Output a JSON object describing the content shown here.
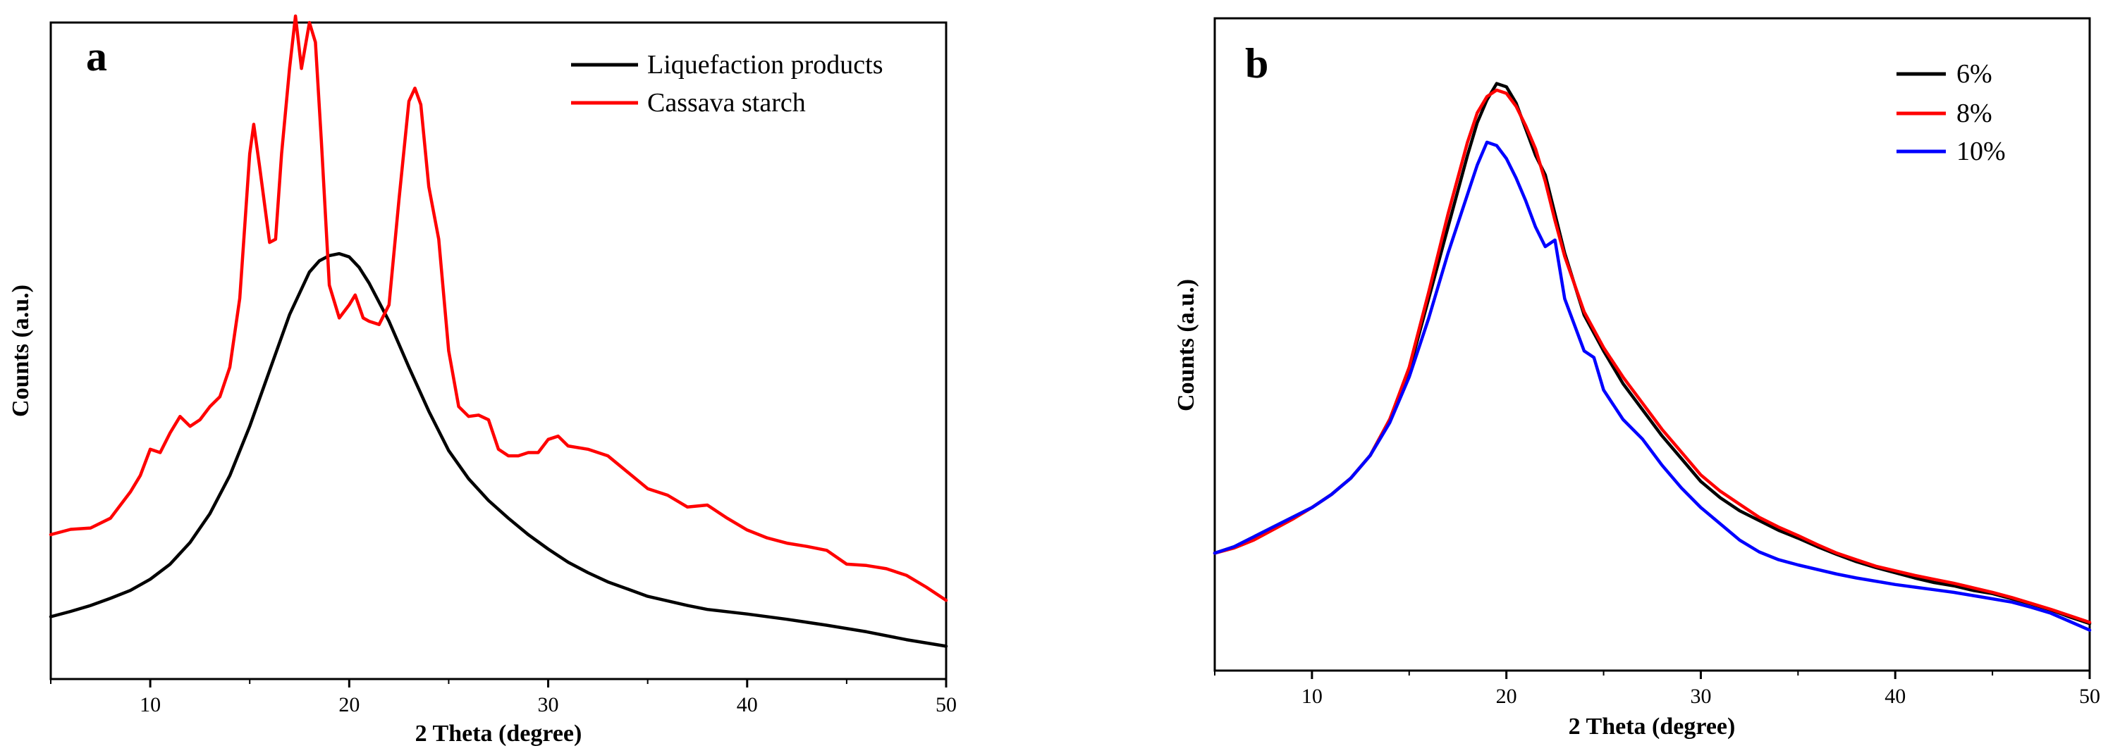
{
  "chart_data": [
    {
      "type": "line",
      "panel_label": "a",
      "xlabel": "2 Theta (degree)",
      "ylabel": "Counts (a.u.)",
      "xlim": [
        5,
        50
      ],
      "ylim": [
        0,
        100
      ],
      "xticks": [
        10,
        20,
        30,
        40,
        50
      ],
      "x_minor_ticks": [
        5,
        15,
        25,
        35,
        45
      ],
      "yticks_shown": false,
      "legend_position": "top-right",
      "series": [
        {
          "name": "Liquefaction products",
          "color": "#000000",
          "x": [
            5,
            6,
            7,
            8,
            9,
            10,
            11,
            12,
            13,
            14,
            15,
            16,
            17,
            18,
            18.5,
            19,
            19.5,
            20,
            20.5,
            21,
            22,
            23,
            24,
            25,
            26,
            27,
            28,
            29,
            30,
            31,
            32,
            33,
            34,
            35,
            36,
            37,
            38,
            40,
            42,
            44,
            46,
            48,
            50
          ],
          "values": [
            9.5,
            10.3,
            11.2,
            12.3,
            13.5,
            15.2,
            17.5,
            20.8,
            25.2,
            31,
            38.5,
            47,
            55.5,
            62,
            63.7,
            64.5,
            64.8,
            64.3,
            62.7,
            60.3,
            54.5,
            47.5,
            40.8,
            34.8,
            30.5,
            27.2,
            24.5,
            22,
            19.8,
            17.8,
            16.2,
            14.8,
            13.7,
            12.6,
            11.9,
            11.2,
            10.6,
            9.9,
            9.1,
            8.2,
            7.2,
            6.0,
            5.0
          ]
        },
        {
          "name": "Cassava starch",
          "color": "#ff0000",
          "x": [
            5,
            6,
            7,
            8,
            9,
            9.5,
            10,
            10.5,
            11,
            11.5,
            12,
            12.5,
            13,
            13.5,
            14,
            14.5,
            15,
            15.2,
            15.5,
            16,
            16.3,
            16.6,
            17,
            17.3,
            17.6,
            18,
            18.3,
            18.6,
            19,
            19.5,
            20,
            20.3,
            20.7,
            21,
            21.5,
            22,
            22.5,
            23,
            23.3,
            23.6,
            24,
            24.5,
            25,
            25.5,
            26,
            26.5,
            27,
            27.5,
            28,
            28.5,
            29,
            29.5,
            30,
            30.5,
            31,
            32,
            33,
            34,
            35,
            36,
            37,
            38,
            39,
            40,
            41,
            42,
            43,
            44,
            45,
            46,
            47,
            48,
            49,
            50
          ],
          "values": [
            22,
            22.8,
            23,
            24.5,
            28.5,
            31,
            35,
            34.5,
            37.5,
            40,
            38.5,
            39.5,
            41.5,
            43,
            47.5,
            58,
            80,
            84.5,
            78,
            66.5,
            67,
            80,
            93,
            101,
            93,
            100,
            97,
            82,
            60,
            55,
            57,
            58.5,
            55,
            54.5,
            54,
            57,
            73,
            88,
            90,
            87.5,
            75,
            67,
            50,
            41.5,
            40,
            40.2,
            39.5,
            35,
            34,
            34,
            34.5,
            34.5,
            36.5,
            37,
            35.5,
            35,
            34,
            31.5,
            29,
            28,
            26.2,
            26.5,
            24.5,
            22.7,
            21.5,
            20.7,
            20.2,
            19.6,
            17.5,
            17.3,
            16.8,
            15.8,
            14,
            12
          ]
        }
      ]
    },
    {
      "type": "line",
      "panel_label": "b",
      "xlabel": "2 Theta (degree)",
      "ylabel": "Counts (a.u.)",
      "xlim": [
        5,
        50
      ],
      "ylim": [
        0,
        100
      ],
      "xticks": [
        10,
        20,
        30,
        40,
        50
      ],
      "x_minor_ticks": [
        5,
        15,
        25,
        35,
        45
      ],
      "yticks_shown": false,
      "legend_position": "top-right",
      "series": [
        {
          "name": "6%",
          "color": "#000000",
          "x": [
            5,
            6,
            7,
            8,
            9,
            10,
            11,
            12,
            13,
            14,
            15,
            16,
            17,
            18,
            18.5,
            19,
            19.5,
            20,
            20.5,
            21,
            21.5,
            22,
            22.5,
            23,
            24,
            25,
            26,
            27,
            28,
            29,
            30,
            31,
            32,
            33,
            34,
            35,
            36,
            37,
            38,
            39,
            40,
            41,
            42,
            43,
            44,
            45,
            46,
            47,
            48,
            49,
            50
          ],
          "values": [
            18,
            19,
            20.5,
            22,
            23.5,
            25,
            27,
            29.5,
            33,
            38.5,
            46,
            57,
            68,
            79,
            84,
            87.5,
            90,
            89.5,
            87,
            83,
            79,
            76,
            70,
            64,
            54.5,
            49,
            44,
            40,
            36,
            32.5,
            29,
            26.5,
            24.5,
            23,
            21.5,
            20.3,
            19,
            17.8,
            16.7,
            15.8,
            15,
            14.2,
            13.5,
            13,
            12.3,
            11.8,
            11,
            10.2,
            9.3,
            8.2,
            7.2
          ]
        },
        {
          "name": "8%",
          "color": "#ff0000",
          "x": [
            5,
            6,
            7,
            8,
            9,
            10,
            11,
            12,
            13,
            14,
            15,
            16,
            17,
            18,
            18.5,
            19,
            19.5,
            20,
            20.5,
            21,
            21.5,
            22,
            22.5,
            23,
            24,
            25,
            26,
            27,
            28,
            29,
            30,
            31,
            32,
            33,
            34,
            35,
            36,
            37,
            38,
            39,
            40,
            41,
            42,
            43,
            44,
            45,
            46,
            47,
            48,
            49,
            50
          ],
          "values": [
            18,
            18.8,
            20,
            21.6,
            23.2,
            25,
            27,
            29.5,
            33,
            38.5,
            46.5,
            58,
            70,
            81,
            85.5,
            88,
            89,
            88.5,
            86.5,
            83.5,
            80,
            75,
            69,
            63.5,
            55,
            49.5,
            45,
            41,
            37,
            33.5,
            30,
            27.5,
            25.5,
            23.5,
            22,
            20.7,
            19.3,
            18,
            17,
            16,
            15.3,
            14.6,
            14,
            13.4,
            12.7,
            12,
            11.2,
            10.3,
            9.4,
            8.4,
            7.4
          ]
        },
        {
          "name": "10%",
          "color": "#0000ff",
          "x": [
            5,
            6,
            7,
            8,
            9,
            10,
            11,
            12,
            13,
            14,
            15,
            16,
            17,
            18,
            18.5,
            19,
            19.5,
            20,
            20.5,
            21,
            21.5,
            22,
            22.5,
            23,
            23.5,
            24,
            24.5,
            25,
            26,
            27,
            28,
            29,
            30,
            31,
            32,
            33,
            34,
            35,
            36,
            37,
            38,
            39,
            40,
            41,
            42,
            43,
            44,
            45,
            46,
            47,
            48,
            49,
            50
          ],
          "values": [
            18,
            19,
            20.5,
            22,
            23.5,
            25,
            27,
            29.5,
            33,
            38,
            45,
            54,
            64,
            73,
            77.5,
            81,
            80.5,
            78.5,
            75.5,
            72,
            68,
            65,
            66,
            57,
            53,
            49,
            48,
            43,
            38.5,
            35.5,
            31.5,
            28,
            25,
            22.5,
            20,
            18.2,
            17,
            16.2,
            15.5,
            14.8,
            14.2,
            13.7,
            13.2,
            12.8,
            12.4,
            12,
            11.5,
            11,
            10.5,
            9.7,
            8.8,
            7.5,
            6.2
          ]
        }
      ]
    }
  ]
}
